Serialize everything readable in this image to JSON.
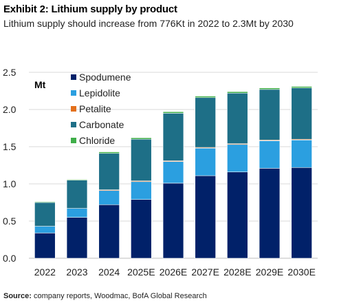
{
  "header": {
    "title": "Exhibit 2: Lithium supply by product",
    "subtitle": "Lithium supply should increase from 776Kt in 2022 to 2.3Mt by 2030"
  },
  "footer": {
    "source_label": "Source:",
    "source_text": " company reports, Woodmac, BofA Global Research"
  },
  "chart_data": {
    "type": "bar",
    "stacked": true,
    "unit_label": "Mt",
    "categories": [
      "2022",
      "2023",
      "2024",
      "2025E",
      "2026E",
      "2027E",
      "2028E",
      "2029E",
      "2030E"
    ],
    "ylim": [
      0,
      2.5
    ],
    "yticks": [
      "0.0",
      "0.5",
      "1.0",
      "1.5",
      "2.0",
      "2.5"
    ],
    "grid": true,
    "legend_position": "top-left",
    "series": [
      {
        "name": "Spodumene",
        "color": "#012169",
        "values": [
          0.34,
          0.55,
          0.72,
          0.79,
          1.01,
          1.11,
          1.16,
          1.21,
          1.22
        ]
      },
      {
        "name": "Lepidolite",
        "color": "#2b9fe0",
        "values": [
          0.09,
          0.12,
          0.19,
          0.24,
          0.29,
          0.37,
          0.37,
          0.37,
          0.37
        ]
      },
      {
        "name": "Petalite",
        "color": "#e3701c",
        "values": [
          0.0,
          0.0,
          0.01,
          0.01,
          0.01,
          0.01,
          0.01,
          0.01,
          0.01
        ]
      },
      {
        "name": "Carbonate",
        "color": "#1e6f87",
        "values": [
          0.32,
          0.38,
          0.49,
          0.56,
          0.64,
          0.67,
          0.68,
          0.68,
          0.69
        ]
      },
      {
        "name": "Chloride",
        "color": "#3fae49",
        "values": [
          0.01,
          0.01,
          0.02,
          0.02,
          0.02,
          0.02,
          0.02,
          0.02,
          0.02
        ]
      }
    ]
  }
}
